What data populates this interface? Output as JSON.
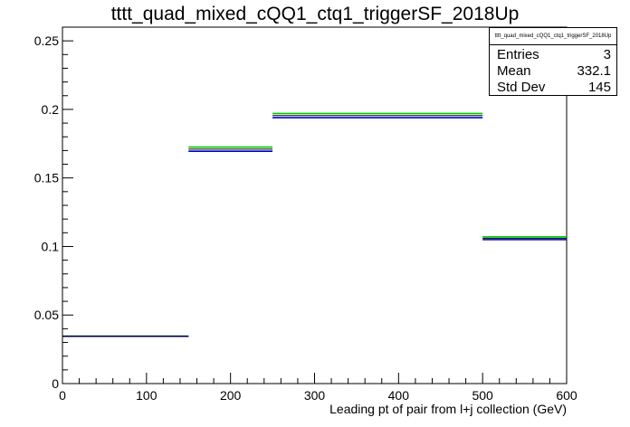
{
  "chart_data": {
    "type": "histogram",
    "title": "tttt_quad_mixed_cQQ1_ctq1_triggerSF_2018Up",
    "xlabel": "Leading pt of pair from l+j collection (GeV)",
    "ylabel": "",
    "xlim": [
      0,
      600
    ],
    "ylim": [
      0,
      0.26
    ],
    "x_ticks": [
      0,
      100,
      200,
      300,
      400,
      500,
      600
    ],
    "y_ticks": [
      0,
      0.05,
      0.1,
      0.15,
      0.2,
      0.25
    ],
    "x_tick_labels": [
      "0",
      "100",
      "200",
      "300",
      "400",
      "500",
      "600"
    ],
    "y_tick_labels": [
      "0",
      "0.05",
      "0.1",
      "0.15",
      "0.2",
      "0.25"
    ],
    "grid": false,
    "bins": [
      {
        "low": 0,
        "high": 150,
        "value": 0.0345,
        "err_low": 0.0345,
        "err_high": 0.0345
      },
      {
        "low": 150,
        "high": 250,
        "value": 0.171,
        "err_low": 0.1695,
        "err_high": 0.1725
      },
      {
        "low": 250,
        "high": 500,
        "value": 0.1955,
        "err_low": 0.194,
        "err_high": 0.197
      },
      {
        "low": 500,
        "high": 600,
        "value": 0.106,
        "err_low": 0.105,
        "err_high": 0.107
      }
    ],
    "colors": {
      "nominal": "#000000",
      "band_low": "#0000cc",
      "band_high": "#00cc00"
    },
    "stats": {
      "name": "tttt_quad_mixed_cQQ1_ctq1_triggerSF_2018Up",
      "entries_label": "Entries",
      "entries": "3",
      "mean_label": "Mean",
      "mean": "332.1",
      "stddev_label": "Std Dev",
      "stddev": "145"
    }
  }
}
